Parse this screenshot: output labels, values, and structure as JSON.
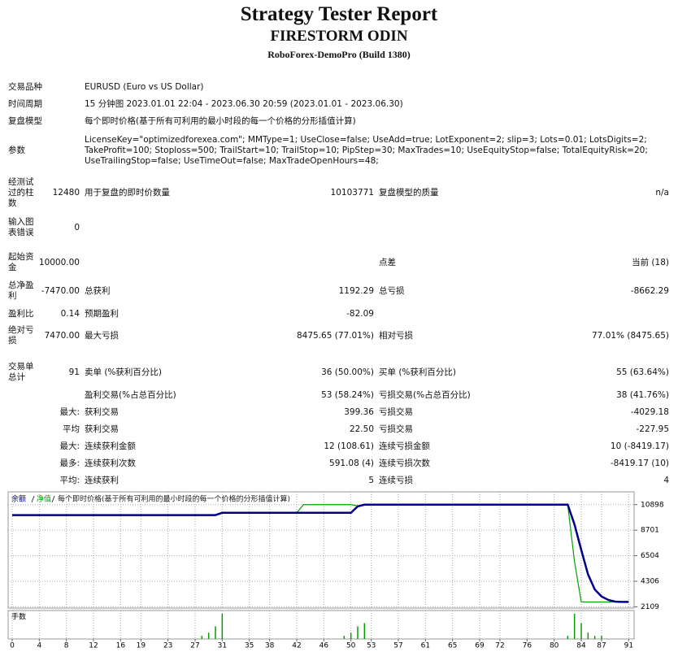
{
  "report": {
    "title": "Strategy Tester Report",
    "subtitle": "FIRESTORM ODIN",
    "server": "RoboForex-DemoPro (Build 1380)"
  },
  "info": [
    {
      "label": "交易品种",
      "value": "EURUSD (Euro vs US Dollar)"
    },
    {
      "label": "时间周期",
      "value": "15 分钟图 2023.01.01 22:04 - 2023.06.30 20:59 (2023.01.01 - 2023.06.30)"
    },
    {
      "label": "复盘模型",
      "value": "每个即时价格(基于所有可利用的最小时段的每一个价格的分形插值计算)"
    },
    {
      "label": "参数",
      "value": "LicenseKey=\"optimizedforexea.com\"; MMType=1; UseClose=false; UseAdd=true; LotExponent=2; slip=3; Lots=0.01; LotsDigits=2; TakeProfit=100; Stoploss=500; TrailStart=10; TrailStop=10; PipStep=30; MaxTrades=10; UseEquityStop=false; TotalEquityRisk=20; UseTrailingStop=false; UseTimeOut=false; MaxTradeOpenHours=48;"
    }
  ],
  "stats": [
    [
      "经测试过的柱数",
      "12480",
      "用于复盘的即时价数量",
      "10103771",
      "复盘模型的质量",
      "n/a"
    ],
    [
      "输入图表错误",
      "0",
      null,
      null,
      null,
      null
    ],
    [
      "起始资金",
      "10000.00",
      null,
      null,
      "点差",
      "当前 (18)"
    ],
    [
      "总净盈利",
      "-7470.00",
      "总获利",
      "1192.29",
      "总亏损",
      "-8662.29"
    ],
    [
      "盈利比",
      "0.14",
      "预期盈利",
      "-82.09",
      null,
      null
    ],
    [
      "绝对亏损",
      "7470.00",
      "最大亏损",
      "8475.65 (77.01%)",
      "相对亏损",
      "77.01% (8475.65)"
    ],
    [
      "交易单总计",
      "91",
      "卖单 (%获利百分比)",
      "36 (50.00%)",
      "买单 (%获利百分比)",
      "55 (63.64%)"
    ],
    [
      null,
      null,
      "盈利交易(%占总百分比)",
      "53 (58.24%)",
      "亏损交易(%占总百分比)",
      "38 (41.76%)"
    ],
    [
      null,
      "最大:",
      "获利交易",
      "399.36",
      "亏损交易",
      "-4029.18"
    ],
    [
      null,
      "平均",
      "获利交易",
      "22.50",
      "亏损交易",
      "-227.95"
    ],
    [
      null,
      "最大:",
      "连续获利金额",
      "12 (108.61)",
      "连续亏损金额",
      "10 (-8419.17)"
    ],
    [
      null,
      "最多:",
      "连续获利次数",
      "591.08 (4)",
      "连续亏损次数",
      "-8419.17 (10)"
    ],
    [
      null,
      "平均:",
      "连续获利",
      "5",
      "连续亏损",
      "4"
    ]
  ],
  "chart_data": {
    "type": "line",
    "mode_label": "每个即时价格(基于所有可利用的最小时段的每一个价格的分形插值计算)",
    "xlim": [
      -0.6,
      91.8
    ],
    "ylim": [
      2000,
      12000
    ],
    "xticks": [
      0,
      4,
      8,
      12,
      16,
      19,
      23,
      27,
      31,
      35,
      38,
      42,
      46,
      50,
      53,
      57,
      61,
      65,
      69,
      72,
      76,
      80,
      84,
      87,
      91
    ],
    "yticks": [
      10898,
      8701,
      6504,
      4306,
      2109
    ],
    "grid": true,
    "series": [
      {
        "name": "余额",
        "color": "#00008b",
        "x": [
          0,
          30,
          31,
          50,
          51,
          52,
          82,
          83,
          84,
          85,
          86,
          87,
          88,
          89,
          90,
          91
        ],
        "values": [
          10000,
          10000,
          10200,
          10200,
          10750,
          10898,
          10898,
          9200,
          7000,
          4900,
          3600,
          3000,
          2700,
          2560,
          2530,
          2530
        ]
      },
      {
        "name": "净值",
        "color": "#00a000",
        "x": [
          0,
          30,
          31,
          42,
          43,
          50,
          51,
          52,
          82,
          83,
          84,
          91
        ],
        "values": [
          10000,
          10000,
          10200,
          10200,
          10900,
          10900,
          10800,
          10898,
          10898,
          6000,
          2530,
          2530
        ]
      }
    ],
    "volume": {
      "label": "手数",
      "color": "#00a000",
      "ylim": [
        0,
        0.09
      ],
      "x": [
        28,
        29,
        30,
        31,
        49,
        50,
        51,
        52,
        82,
        83,
        84,
        85,
        86,
        87
      ],
      "values": [
        0.01,
        0.02,
        0.04,
        0.08,
        0.01,
        0.02,
        0.04,
        0.05,
        0.01,
        0.08,
        0.05,
        0.02,
        0.01,
        0.01
      ]
    }
  }
}
